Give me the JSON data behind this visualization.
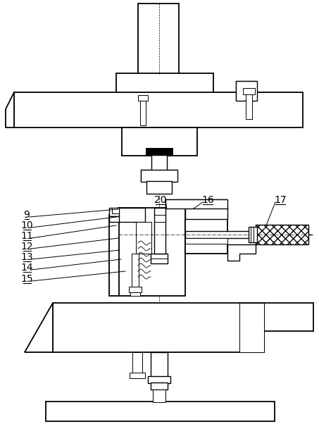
{
  "bg_color": "#ffffff",
  "line_color": "#000000",
  "figsize": [
    4.53,
    6.09
  ],
  "dpi": 100
}
